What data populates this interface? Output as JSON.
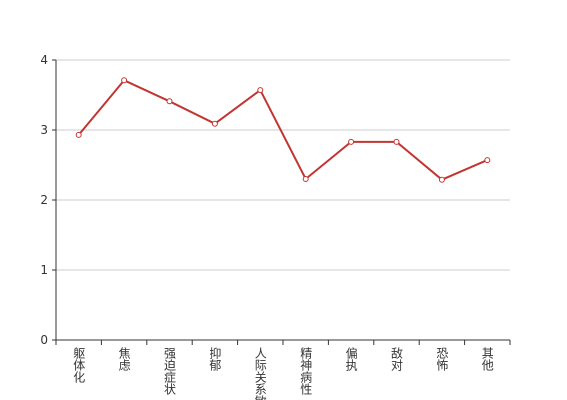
{
  "chart_data": {
    "type": "line",
    "categories": [
      "躯体化",
      "焦虑",
      "强迫症状",
      "抑郁",
      "人际关系敏感",
      "精神病性",
      "偏执",
      "敌对",
      "恐怖",
      "其他"
    ],
    "series": [
      {
        "name": null,
        "color": "#c23531",
        "values": [
          2.93,
          3.71,
          3.41,
          3.09,
          3.57,
          2.3,
          2.83,
          2.83,
          2.29,
          2.57
        ]
      }
    ],
    "ylim": [
      0,
      4
    ],
    "yticks": [
      0,
      1,
      2,
      3,
      4
    ],
    "grid": true
  }
}
